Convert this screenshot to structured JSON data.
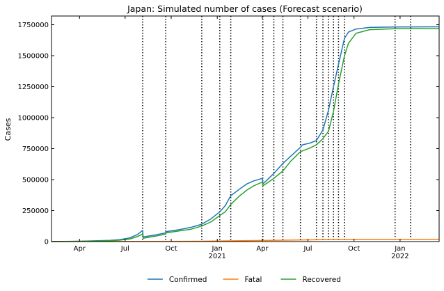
{
  "chart_data": {
    "type": "line",
    "title": "Japan: Simulated number of cases (Forecast scenario)",
    "xlabel": "",
    "ylabel": "Cases",
    "xlim": [
      "2020-02-05",
      "2022-03-20"
    ],
    "ylim": [
      0,
      1820000
    ],
    "y_ticks": [
      0,
      250000,
      500000,
      750000,
      1000000,
      1250000,
      1500000,
      1750000
    ],
    "x_ticks": [
      {
        "date": "2020-04-01",
        "label": "Apr",
        "sublabel": ""
      },
      {
        "date": "2020-07-01",
        "label": "Jul",
        "sublabel": ""
      },
      {
        "date": "2020-10-01",
        "label": "Oct",
        "sublabel": ""
      },
      {
        "date": "2021-01-01",
        "label": "Jan",
        "sublabel": "2021"
      },
      {
        "date": "2021-04-01",
        "label": "Apr",
        "sublabel": ""
      },
      {
        "date": "2021-07-01",
        "label": "Jul",
        "sublabel": ""
      },
      {
        "date": "2021-10-01",
        "label": "Oct",
        "sublabel": ""
      },
      {
        "date": "2022-01-01",
        "label": "Jan",
        "sublabel": "2022"
      }
    ],
    "change_dates": [
      "2020-08-05",
      "2020-09-20",
      "2020-12-01",
      "2021-01-06",
      "2021-01-28",
      "2021-04-02",
      "2021-04-24",
      "2021-05-12",
      "2021-06-16",
      "2021-07-18",
      "2021-07-31",
      "2021-08-11",
      "2021-08-21",
      "2021-08-31",
      "2021-09-12",
      "2021-12-22",
      "2022-01-22"
    ],
    "legend_position": "bottom-center",
    "grid": false,
    "series": [
      {
        "name": "Confirmed",
        "color": "#1f77b4",
        "points": [
          [
            "2020-02-05",
            0
          ],
          [
            "2020-03-01",
            1000
          ],
          [
            "2020-04-01",
            3000
          ],
          [
            "2020-05-01",
            6000
          ],
          [
            "2020-06-01",
            10000
          ],
          [
            "2020-06-20",
            16000
          ],
          [
            "2020-07-10",
            30000
          ],
          [
            "2020-07-25",
            55000
          ],
          [
            "2020-08-05",
            90000
          ],
          [
            "2020-08-06",
            37000
          ],
          [
            "2020-09-01",
            55000
          ],
          [
            "2020-09-20",
            70000
          ],
          [
            "2020-09-21",
            80000
          ],
          [
            "2020-10-15",
            95000
          ],
          [
            "2020-11-10",
            115000
          ],
          [
            "2020-12-01",
            140000
          ],
          [
            "2020-12-20",
            185000
          ],
          [
            "2021-01-06",
            240000
          ],
          [
            "2021-01-17",
            290000
          ],
          [
            "2021-01-28",
            370000
          ],
          [
            "2021-02-15",
            425000
          ],
          [
            "2021-03-01",
            465000
          ],
          [
            "2021-03-15",
            490000
          ],
          [
            "2021-04-01",
            510000
          ],
          [
            "2021-04-02",
            465000
          ],
          [
            "2021-04-10",
            495000
          ],
          [
            "2021-04-24",
            550000
          ],
          [
            "2021-05-12",
            630000
          ],
          [
            "2021-05-28",
            690000
          ],
          [
            "2021-06-16",
            760000
          ],
          [
            "2021-06-20",
            780000
          ],
          [
            "2021-07-05",
            795000
          ],
          [
            "2021-07-18",
            815000
          ],
          [
            "2021-07-31",
            900000
          ],
          [
            "2021-08-11",
            1060000
          ],
          [
            "2021-08-21",
            1250000
          ],
          [
            "2021-08-31",
            1430000
          ],
          [
            "2021-09-12",
            1640000
          ],
          [
            "2021-09-20",
            1690000
          ],
          [
            "2021-10-05",
            1715000
          ],
          [
            "2021-11-01",
            1728000
          ],
          [
            "2021-12-22",
            1732000
          ],
          [
            "2022-03-20",
            1733000
          ]
        ]
      },
      {
        "name": "Fatal",
        "color": "#ff7f0e",
        "points": [
          [
            "2020-02-05",
            0
          ],
          [
            "2020-08-01",
            1000
          ],
          [
            "2020-12-01",
            3000
          ],
          [
            "2021-04-01",
            9000
          ],
          [
            "2021-08-01",
            15000
          ],
          [
            "2021-12-01",
            17000
          ],
          [
            "2022-03-20",
            18000
          ]
        ]
      },
      {
        "name": "Recovered",
        "color": "#2ca02c",
        "points": [
          [
            "2020-02-05",
            0
          ],
          [
            "2020-03-01",
            500
          ],
          [
            "2020-04-01",
            2000
          ],
          [
            "2020-05-01",
            4000
          ],
          [
            "2020-06-01",
            7000
          ],
          [
            "2020-06-20",
            11000
          ],
          [
            "2020-07-10",
            20000
          ],
          [
            "2020-07-25",
            40000
          ],
          [
            "2020-08-05",
            60000
          ],
          [
            "2020-08-06",
            27000
          ],
          [
            "2020-09-01",
            45000
          ],
          [
            "2020-09-20",
            60000
          ],
          [
            "2020-09-21",
            70000
          ],
          [
            "2020-10-15",
            85000
          ],
          [
            "2020-11-10",
            100000
          ],
          [
            "2020-12-01",
            125000
          ],
          [
            "2020-12-20",
            160000
          ],
          [
            "2021-01-06",
            210000
          ],
          [
            "2021-01-17",
            240000
          ],
          [
            "2021-01-28",
            300000
          ],
          [
            "2021-02-15",
            370000
          ],
          [
            "2021-03-01",
            415000
          ],
          [
            "2021-03-15",
            450000
          ],
          [
            "2021-04-01",
            480000
          ],
          [
            "2021-04-02",
            450000
          ],
          [
            "2021-04-10",
            470000
          ],
          [
            "2021-04-24",
            510000
          ],
          [
            "2021-05-12",
            570000
          ],
          [
            "2021-05-28",
            650000
          ],
          [
            "2021-06-16",
            725000
          ],
          [
            "2021-07-05",
            755000
          ],
          [
            "2021-07-18",
            780000
          ],
          [
            "2021-07-31",
            830000
          ],
          [
            "2021-08-11",
            890000
          ],
          [
            "2021-08-21",
            1050000
          ],
          [
            "2021-08-31",
            1270000
          ],
          [
            "2021-09-12",
            1500000
          ],
          [
            "2021-09-20",
            1600000
          ],
          [
            "2021-10-05",
            1680000
          ],
          [
            "2021-11-01",
            1710000
          ],
          [
            "2021-12-22",
            1717000
          ],
          [
            "2022-03-20",
            1718000
          ]
        ]
      }
    ]
  }
}
